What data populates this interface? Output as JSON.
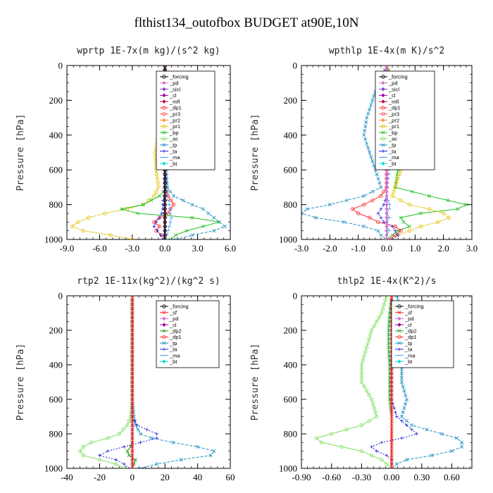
{
  "page": {
    "title": "flthist134_outofbox  BUDGET at90E,10N"
  },
  "colors": {
    "forcing": "#000000",
    "pd": "#d070d0",
    "sicl": "#8040c0",
    "cl": "#a000a0",
    "mfl": "#c00040",
    "sf": "#ff2020",
    "dp1": "#ff3030",
    "dp2": "#20a020",
    "pr3": "#ff5050",
    "pr2": "#ff9040",
    "pr1": "#e0c000",
    "bp": "#20c020",
    "ac": "#80e060",
    "tp": "#2090c0",
    "ta": "#2020e0",
    "ma": "#40a0ff",
    "bt": "#00e0e0"
  },
  "chart_data": [
    {
      "type": "line",
      "title": "wprtp  1E-7x(m kg)/(s^2 kg)",
      "ylabel": "Pressure [hPa]",
      "xlim": [
        -9,
        6
      ],
      "ylim": [
        1000,
        0
      ],
      "y_inverted": true,
      "xticks": [
        -9,
        -6,
        -3,
        0,
        3,
        6
      ],
      "xtick_labels": [
        "-9.0",
        "-6.0",
        "-3.0",
        "0.0",
        "3.0",
        "6.0"
      ],
      "yticks": [
        0,
        200,
        400,
        600,
        800,
        1000
      ],
      "ytick_labels": [
        "0",
        "200",
        "400",
        "600",
        "800",
        "1000"
      ],
      "legend": [
        "_forcing",
        "_pd",
        "_sicl",
        "_cl",
        "_mfl",
        "_dp1",
        "_pr3",
        "_pr2",
        "_pr1",
        "_bp",
        "_ac",
        "_tp",
        "_ta",
        "_ma",
        "_bt"
      ],
      "legend_keys": [
        "forcing",
        "pd",
        "sicl",
        "cl",
        "mfl",
        "dp1",
        "pr3",
        "pr2",
        "pr1",
        "bp",
        "ac",
        "tp",
        "ta",
        "ma",
        "bt"
      ],
      "legend_position": "top-right",
      "y": [
        0,
        100,
        200,
        300,
        400,
        500,
        600,
        700,
        750,
        800,
        825,
        850,
        875,
        900,
        925,
        950,
        975,
        1000
      ],
      "series": [
        {
          "name": "_pr1",
          "key": "pr1",
          "values": [
            0,
            0,
            0,
            -0.3,
            -0.6,
            -0.9,
            -0.8,
            -0.6,
            -1.0,
            -2.0,
            -3.5,
            -5.5,
            -7.0,
            -8.0,
            -8.5,
            -7.5,
            -5.0,
            -3.0
          ]
        },
        {
          "name": "_bp",
          "key": "bp",
          "values": [
            0,
            0,
            0,
            0,
            0,
            0,
            0,
            0.2,
            -0.5,
            -2.0,
            -4.0,
            -2.5,
            2.5,
            5.0,
            3.5,
            2.0,
            1.0,
            0.5
          ]
        },
        {
          "name": "_tp",
          "key": "tp",
          "values": [
            0,
            0,
            0,
            0,
            0,
            0,
            0,
            0.2,
            0.8,
            2.5,
            3.5,
            4.0,
            4.5,
            5.0,
            5.5,
            4.5,
            2.5,
            1.0
          ]
        },
        {
          "name": "_dp1",
          "key": "dp1",
          "values": [
            0,
            0,
            0,
            0,
            0,
            0,
            0,
            0,
            0.3,
            0.8,
            0.5,
            0.3,
            -0.5,
            -1.0,
            -0.5,
            -0.8,
            -0.3,
            0
          ]
        },
        {
          "name": "_ta",
          "key": "ta",
          "values": [
            0,
            0,
            0,
            0,
            0,
            0,
            0,
            0,
            -0.1,
            -0.2,
            -0.2,
            -0.3,
            -0.5,
            -0.8,
            -1.0,
            -0.7,
            -0.4,
            -0.2
          ]
        },
        {
          "name": "_ma",
          "key": "ma",
          "values": [
            0,
            0.2,
            0.3,
            0.3,
            0.2,
            0.2,
            0.2,
            0.2,
            0.2,
            0.4,
            0.5,
            0.5,
            0.6,
            0.5,
            0.4,
            0.3,
            0.2,
            0.1
          ]
        },
        {
          "name": "_pd",
          "key": "pd",
          "values": [
            0,
            0,
            0,
            0,
            0,
            0,
            0,
            0,
            0,
            0,
            0,
            0,
            0,
            0,
            0,
            0,
            0,
            0
          ]
        },
        {
          "name": "_forcing",
          "key": "forcing",
          "values": [
            0,
            0,
            0,
            0,
            0,
            0,
            0,
            0,
            0,
            0,
            0,
            0,
            0,
            0,
            0,
            0,
            0,
            0
          ]
        }
      ]
    },
    {
      "type": "line",
      "title": "wpthlp  1E-4x(m K)/s^2",
      "ylabel": "Pressure [hPa]",
      "xlim": [
        -3,
        3
      ],
      "ylim": [
        1000,
        0
      ],
      "y_inverted": true,
      "xticks": [
        -3,
        -2,
        -1,
        0,
        1,
        2,
        3
      ],
      "xtick_labels": [
        "-3.0",
        "-2.0",
        "-1.0",
        "0.0",
        "1.0",
        "2.0",
        "3.0"
      ],
      "yticks": [
        0,
        200,
        400,
        600,
        800,
        1000
      ],
      "ytick_labels": [
        "0",
        "200",
        "400",
        "600",
        "800",
        "1000"
      ],
      "legend": [
        "_forcing",
        "_pd",
        "_sicl",
        "_cl",
        "_mfl",
        "_dp1",
        "_pr3",
        "_pr2",
        "_pr1",
        "_bp",
        "_ac",
        "_tp",
        "_ta",
        "_ma",
        "_bt"
      ],
      "legend_keys": [
        "forcing",
        "pd",
        "sicl",
        "cl",
        "mfl",
        "dp1",
        "pr3",
        "pr2",
        "pr1",
        "bp",
        "ac",
        "tp",
        "ta",
        "ma",
        "bt"
      ],
      "legend_position": "top-right",
      "y": [
        0,
        100,
        200,
        300,
        400,
        500,
        600,
        700,
        750,
        800,
        825,
        850,
        875,
        900,
        925,
        950,
        975,
        1000
      ],
      "series": [
        {
          "name": "_tp",
          "key": "tp",
          "values": [
            0,
            -0.3,
            -0.5,
            -0.7,
            -0.8,
            -0.6,
            -0.4,
            -0.2,
            -0.8,
            -2.0,
            -2.8,
            -3.0,
            -2.5,
            -1.5,
            -0.8,
            -0.3,
            -0.2,
            0
          ]
        },
        {
          "name": "_bp",
          "key": "bp",
          "values": [
            0,
            0.3,
            0.5,
            0.7,
            0.8,
            0.6,
            0.4,
            0.3,
            1.5,
            2.8,
            2.5,
            1.2,
            0.5,
            0.6,
            0.8,
            0.4,
            0.2,
            0
          ]
        },
        {
          "name": "_pr1",
          "key": "pr1",
          "values": [
            0,
            0.1,
            0.1,
            0.2,
            0.3,
            0.4,
            0.5,
            0.3,
            0.2,
            0.8,
            1.5,
            2.0,
            2.2,
            1.8,
            1.2,
            0.8,
            0.4,
            0.2
          ]
        },
        {
          "name": "_dp1",
          "key": "dp1",
          "values": [
            0,
            0,
            0,
            0,
            0,
            0,
            0,
            0,
            -0.2,
            -0.8,
            -1.2,
            -1.0,
            -0.6,
            -0.3,
            0.3,
            0.5,
            0.3,
            0.1
          ]
        },
        {
          "name": "_ta",
          "key": "ta",
          "values": [
            0,
            0,
            0,
            0,
            0,
            0,
            0,
            0,
            0,
            -0.1,
            -0.2,
            -0.3,
            -0.2,
            -0.1,
            0.2,
            0.3,
            0.4,
            0.2
          ]
        },
        {
          "name": "_ma",
          "key": "ma",
          "values": [
            0,
            -0.1,
            0.1,
            0,
            0.1,
            0,
            0.1,
            0,
            0,
            0.1,
            0.1,
            0,
            0.1,
            0,
            0,
            0.1,
            0,
            0
          ]
        },
        {
          "name": "_pd",
          "key": "pd",
          "values": [
            0,
            0,
            0,
            0,
            0,
            0,
            0,
            0,
            0,
            0,
            0,
            0,
            0,
            0,
            0,
            0,
            0,
            0
          ]
        }
      ]
    },
    {
      "type": "line",
      "title": "rtp2  1E-11x(kg^2)/(kg^2 s)",
      "ylabel": "Pressure [hPa]",
      "xlim": [
        -40,
        60
      ],
      "ylim": [
        1000,
        0
      ],
      "y_inverted": true,
      "xticks": [
        -40,
        -20,
        0,
        20,
        40,
        60
      ],
      "xtick_labels": [
        "-40",
        "-20",
        "0",
        "20",
        "40",
        "60"
      ],
      "yticks": [
        0,
        200,
        400,
        600,
        800,
        1000
      ],
      "ytick_labels": [
        "0",
        "200",
        "400",
        "600",
        "800",
        "1000"
      ],
      "legend": [
        "_forcing",
        "_sf",
        "_pd",
        "_cl",
        "_dp2",
        "_dp1",
        "_tp",
        "_ta",
        "_ma",
        "_bt"
      ],
      "legend_keys": [
        "forcing",
        "sf",
        "pd",
        "cl",
        "dp2",
        "dp1",
        "tp",
        "ta",
        "ma",
        "bt"
      ],
      "legend_position": "top-right",
      "y": [
        0,
        100,
        200,
        300,
        400,
        500,
        600,
        700,
        750,
        800,
        825,
        850,
        875,
        900,
        925,
        950,
        975,
        1000
      ],
      "series": [
        {
          "name": "_dp1",
          "key": "ac",
          "values": [
            0,
            0,
            0,
            0,
            0,
            0,
            0,
            -1,
            -3,
            -8,
            -15,
            -25,
            -30,
            -32,
            -30,
            -20,
            -10,
            -5
          ]
        },
        {
          "name": "_tp",
          "key": "tp",
          "values": [
            0,
            0,
            0,
            0,
            0,
            0,
            0,
            1,
            2,
            5,
            12,
            25,
            40,
            50,
            48,
            30,
            15,
            5
          ]
        },
        {
          "name": "_ta",
          "key": "ta",
          "values": [
            0,
            0,
            0,
            0,
            0,
            0,
            0,
            0,
            3,
            15,
            15,
            5,
            -5,
            -15,
            -20,
            -10,
            -5,
            -2
          ]
        },
        {
          "name": "_dp2",
          "key": "dp2",
          "values": [
            0,
            0,
            0,
            0,
            0,
            0,
            0,
            0,
            0,
            0,
            0,
            0,
            -1,
            -3,
            -2,
            2,
            1,
            0
          ]
        },
        {
          "name": "_ma",
          "key": "ma",
          "values": [
            0,
            0,
            0,
            0,
            0,
            0,
            0,
            0,
            0,
            0,
            0,
            0,
            0,
            0,
            0,
            0,
            0,
            0
          ]
        },
        {
          "name": "_forcing",
          "key": "sf",
          "values": [
            0,
            0,
            0,
            0,
            0,
            0,
            0,
            0,
            0,
            0,
            0,
            0,
            0,
            0,
            0,
            0,
            0,
            0
          ]
        }
      ]
    },
    {
      "type": "line",
      "title": "thlp2  1E-4x(K^2)/s",
      "ylabel": "Pressure [hPa]",
      "xlim": [
        -0.9,
        0.8
      ],
      "ylim": [
        1000,
        0
      ],
      "y_inverted": true,
      "xticks": [
        -0.9,
        -0.6,
        -0.3,
        0,
        0.3,
        0.6
      ],
      "xtick_labels": [
        "-0.90",
        "-0.60",
        "-0.30",
        "0.00",
        "0.30",
        "0.60"
      ],
      "yticks": [
        0,
        200,
        400,
        600,
        800,
        1000
      ],
      "ytick_labels": [
        "0",
        "200",
        "400",
        "600",
        "800",
        "1000"
      ],
      "legend": [
        "_forcing",
        "_sf",
        "_pd",
        "_cl",
        "_dp2",
        "_dp1",
        "_tp",
        "_ta",
        "_ma",
        "_bt"
      ],
      "legend_keys": [
        "forcing",
        "sf",
        "pd",
        "cl",
        "dp2",
        "dp1",
        "tp",
        "ta",
        "ma",
        "bt"
      ],
      "legend_position": "top-right",
      "y": [
        0,
        100,
        200,
        300,
        400,
        500,
        600,
        700,
        750,
        800,
        825,
        850,
        875,
        900,
        925,
        950,
        975,
        1000
      ],
      "series": [
        {
          "name": "_dp1",
          "key": "ac",
          "values": [
            -0.05,
            -0.1,
            -0.2,
            -0.25,
            -0.3,
            -0.3,
            -0.2,
            -0.15,
            -0.3,
            -0.6,
            -0.75,
            -0.7,
            -0.5,
            -0.3,
            -0.2,
            -0.1,
            -0.05,
            0
          ]
        },
        {
          "name": "_tp",
          "key": "tp",
          "values": [
            0.05,
            0.1,
            0.15,
            0.15,
            0.1,
            0.1,
            0.15,
            0.1,
            0.2,
            0.5,
            0.65,
            0.7,
            0.7,
            0.6,
            0.4,
            0.15,
            0.05,
            0
          ]
        },
        {
          "name": "_ta",
          "key": "ta",
          "values": [
            0,
            0,
            0,
            0,
            0,
            0,
            0,
            0.05,
            0.15,
            0.25,
            0.1,
            -0.1,
            -0.2,
            -0.15,
            -0.05,
            0,
            0,
            0
          ]
        },
        {
          "name": "_dp2",
          "key": "dp2",
          "values": [
            0,
            -0.02,
            -0.03,
            -0.03,
            -0.02,
            -0.02,
            -0.02,
            0,
            0,
            0,
            0,
            0,
            0,
            0,
            0,
            0,
            0,
            0
          ]
        },
        {
          "name": "_forcing",
          "key": "sf",
          "values": [
            0,
            0,
            0,
            0,
            0,
            0,
            0,
            0,
            0,
            0,
            0,
            0,
            0,
            0,
            0,
            0,
            0,
            0
          ]
        }
      ]
    }
  ]
}
